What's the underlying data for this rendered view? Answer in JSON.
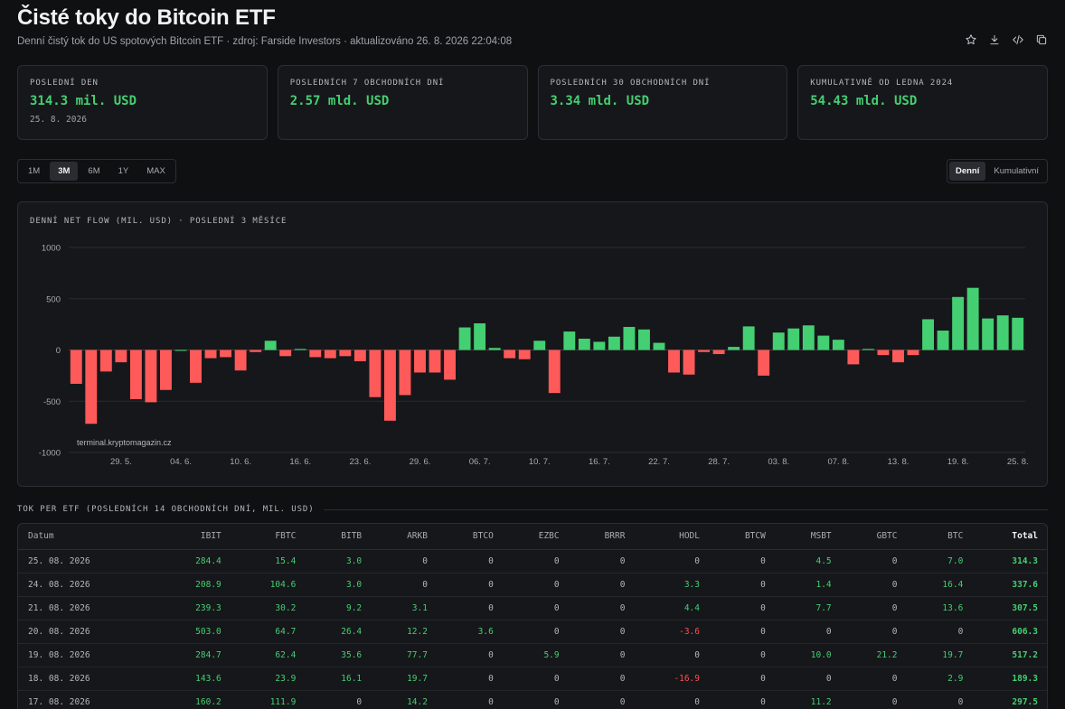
{
  "header": {
    "title": "Čisté toky do Bitcoin ETF",
    "subtitle": "Denní čistý tok do US spotových Bitcoin ETF · zdroj: Farside Investors · aktualizováno 26. 8. 2026 22:04:08"
  },
  "tools": [
    {
      "icon": "star-icon"
    },
    {
      "icon": "download-icon"
    },
    {
      "icon": "embed-code-icon"
    },
    {
      "icon": "copy-icon"
    }
  ],
  "stats": [
    {
      "label": "POSLEDNÍ DEN",
      "value": "314.3 mil. USD",
      "date": "25. 8. 2026"
    },
    {
      "label": "POSLEDNÍCH 7 OBCHODNÍCH DNÍ",
      "value": "2.57 mld. USD",
      "date": ""
    },
    {
      "label": "POSLEDNÍCH 30 OBCHODNÍCH DNÍ",
      "value": "3.34 mld. USD",
      "date": ""
    },
    {
      "label": "KUMULATIVNĚ OD LEDNA 2024",
      "value": "54.43 mld. USD",
      "date": ""
    }
  ],
  "range_buttons": [
    "1M",
    "3M",
    "6M",
    "1Y",
    "MAX"
  ],
  "range_active": "3M",
  "mode_buttons": [
    "Denní",
    "Kumulativní"
  ],
  "mode_active": "Denní",
  "chart_title": "DENNÍ NET FLOW (MIL. USD) · POSLEDNÍ 3 MĚSÍCE",
  "watermark": "terminal.kryptomagazin.cz",
  "colors": {
    "positive": "#44cf72",
    "negative": "#ff5a5a",
    "grid": "#2a2c31"
  },
  "chart_data": {
    "type": "bar",
    "title": "DENNÍ NET FLOW (MIL. USD) · POSLEDNÍ 3 MĚSÍCE",
    "ylim": [
      -1000,
      1000
    ],
    "yticks": [
      1000,
      500,
      0,
      -500,
      -1000
    ],
    "xticks": [
      "29. 5.",
      "04. 6.",
      "10. 6.",
      "16. 6.",
      "23. 6.",
      "29. 6.",
      "06. 7.",
      "10. 7.",
      "16. 7.",
      "22. 7.",
      "28. 7.",
      "03. 8.",
      "07. 8.",
      "13. 8.",
      "19. 8.",
      "25. 8."
    ],
    "xtick_index": [
      3,
      7,
      11,
      15,
      19,
      23,
      27,
      31,
      35,
      39,
      43,
      47,
      51,
      55,
      59,
      63
    ],
    "values": [
      -330,
      -720,
      -210,
      -120,
      -480,
      -510,
      -390,
      0,
      -320,
      -80,
      -70,
      -200,
      -20,
      90,
      -60,
      10,
      -70,
      -80,
      -60,
      -110,
      -460,
      -690,
      -440,
      -220,
      -220,
      -290,
      220,
      260,
      20,
      -80,
      -90,
      90,
      -420,
      180,
      110,
      80,
      130,
      225,
      200,
      70,
      -220,
      -240,
      -20,
      -40,
      30,
      230,
      -250,
      170,
      210,
      240,
      140,
      100,
      -140,
      10,
      -50,
      -120,
      -50,
      300,
      189.3,
      517.2,
      606.3,
      307.5,
      337.6,
      314.3
    ],
    "grid": true
  },
  "table": {
    "title": "TOK PER ETF (POSLEDNÍCH 14 OBCHODNÍCH DNÍ, MIL. USD)",
    "columns": [
      "Datum",
      "IBIT",
      "FBTC",
      "BITB",
      "ARKB",
      "BTCO",
      "EZBC",
      "BRRR",
      "HODL",
      "BTCW",
      "MSBT",
      "GBTC",
      "BTC",
      "Total"
    ],
    "rows": [
      [
        "25. 08. 2026",
        "284.4",
        "15.4",
        "3.0",
        "0",
        "0",
        "0",
        "0",
        "0",
        "0",
        "4.5",
        "0",
        "7.0",
        "314.3"
      ],
      [
        "24. 08. 2026",
        "208.9",
        "104.6",
        "3.0",
        "0",
        "0",
        "0",
        "0",
        "3.3",
        "0",
        "1.4",
        "0",
        "16.4",
        "337.6"
      ],
      [
        "21. 08. 2026",
        "239.3",
        "30.2",
        "9.2",
        "3.1",
        "0",
        "0",
        "0",
        "4.4",
        "0",
        "7.7",
        "0",
        "13.6",
        "307.5"
      ],
      [
        "20. 08. 2026",
        "503.0",
        "64.7",
        "26.4",
        "12.2",
        "3.6",
        "0",
        "0",
        "-3.6",
        "0",
        "0",
        "0",
        "0",
        "606.3"
      ],
      [
        "19. 08. 2026",
        "284.7",
        "62.4",
        "35.6",
        "77.7",
        "0",
        "5.9",
        "0",
        "0",
        "0",
        "10.0",
        "21.2",
        "19.7",
        "517.2"
      ],
      [
        "18. 08. 2026",
        "143.6",
        "23.9",
        "16.1",
        "19.7",
        "0",
        "0",
        "0",
        "-16.9",
        "0",
        "0",
        "0",
        "2.9",
        "189.3"
      ],
      [
        "17. 08. 2026",
        "160.2",
        "111.9",
        "0",
        "14.2",
        "0",
        "0",
        "0",
        "0",
        "0",
        "11.2",
        "0",
        "0",
        "297.5"
      ]
    ]
  }
}
